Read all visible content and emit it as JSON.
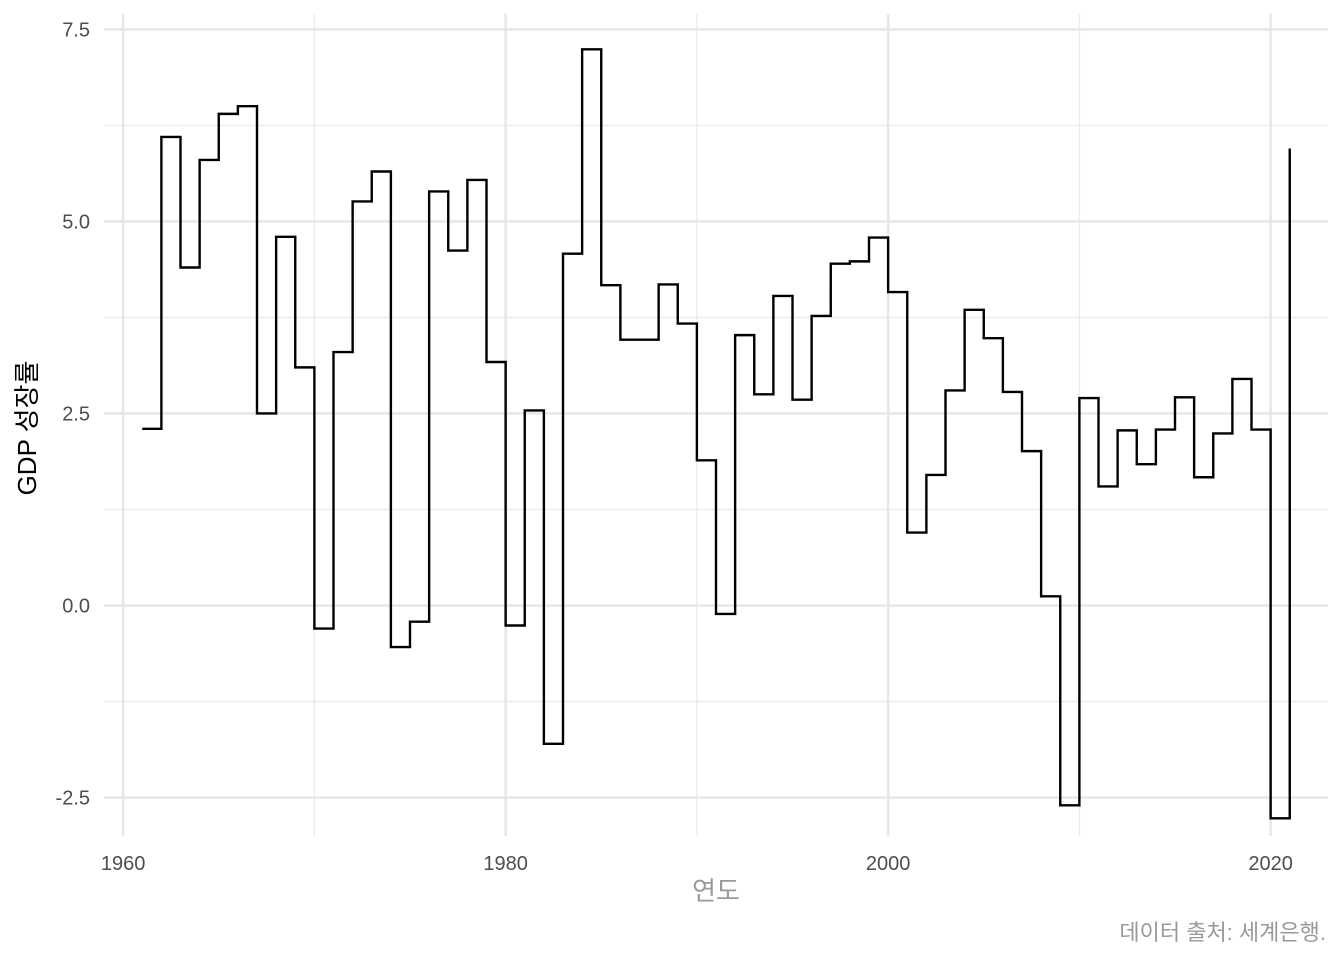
{
  "chart_data": {
    "type": "line",
    "line_shape": "step",
    "xlabel": "연도",
    "ylabel": "GDP 성장률",
    "caption": "데이터 출처: 세계은행.",
    "xlim": [
      1959,
      2023
    ],
    "ylim": [
      -3.0,
      7.7
    ],
    "x_ticks": [
      1960,
      1980,
      2000,
      2020
    ],
    "y_ticks": [
      -2.5,
      0.0,
      2.5,
      5.0,
      7.5
    ],
    "x_tick_labels": [
      "1960",
      "1980",
      "2000",
      "2020"
    ],
    "y_tick_labels": [
      "-2.5",
      "0.0",
      "2.5",
      "5.0",
      "7.5"
    ],
    "grid": true,
    "legend": "none",
    "line_color": "#000000",
    "series": [
      {
        "x": [
          1961,
          1962,
          1963,
          1964,
          1965,
          1966,
          1967,
          1968,
          1969,
          1970,
          1971,
          1972,
          1973,
          1974,
          1975,
          1976,
          1977,
          1978,
          1979,
          1980,
          1981,
          1982,
          1983,
          1984,
          1985,
          1986,
          1987,
          1988,
          1989,
          1990,
          1991,
          1992,
          1993,
          1994,
          1995,
          1996,
          1997,
          1998,
          1999,
          2000,
          2001,
          2002,
          2003,
          2004,
          2005,
          2006,
          2007,
          2008,
          2009,
          2010,
          2011,
          2012,
          2013,
          2014,
          2015,
          2016,
          2017,
          2018,
          2019,
          2020,
          2021
        ],
        "y": [
          2.3,
          6.1,
          4.4,
          5.8,
          6.4,
          6.5,
          2.5,
          4.8,
          3.1,
          -0.3,
          3.3,
          5.26,
          5.65,
          -0.54,
          -0.21,
          5.39,
          4.62,
          5.54,
          3.17,
          -0.26,
          2.54,
          -1.8,
          4.58,
          7.24,
          4.17,
          3.46,
          3.46,
          4.18,
          3.67,
          1.89,
          -0.11,
          3.52,
          2.75,
          4.03,
          2.68,
          3.77,
          4.45,
          4.48,
          4.79,
          4.08,
          0.95,
          1.7,
          2.8,
          3.85,
          3.48,
          2.78,
          2.01,
          0.12,
          -2.6,
          2.7,
          1.55,
          2.28,
          1.84,
          2.29,
          2.71,
          1.67,
          2.24,
          2.95,
          2.29,
          -2.77,
          5.95
        ]
      }
    ]
  }
}
